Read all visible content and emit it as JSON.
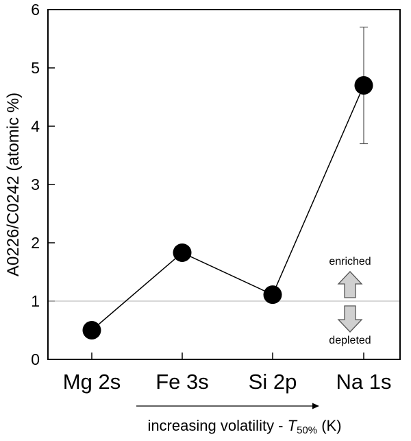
{
  "chart_data": {
    "type": "scatter",
    "categories": [
      "Mg 2s",
      "Fe 3s",
      "Si 2p",
      "Na 1s"
    ],
    "values": [
      0.5,
      1.83,
      1.11,
      4.7
    ],
    "error": {
      "category": "Na 1s",
      "low": 3.7,
      "high": 5.7
    },
    "ylabel": "A0226/C0242 (atomic %)",
    "ylim": [
      0,
      6
    ],
    "yticks": [
      "0",
      "1",
      "2",
      "3",
      "4",
      "5",
      "6"
    ],
    "reference_line": 1,
    "annotations": {
      "enriched": "enriched",
      "depleted": "depleted"
    },
    "xnote": {
      "prefix": "increasing volatility - ",
      "symbol": "T",
      "subscript": "50%",
      "suffix": " (K)"
    },
    "colors": {
      "marker": "#000000",
      "reference": "#bfbfbf",
      "arrow_fill": "#d0d0d0",
      "arrow_stroke": "#555555"
    }
  }
}
